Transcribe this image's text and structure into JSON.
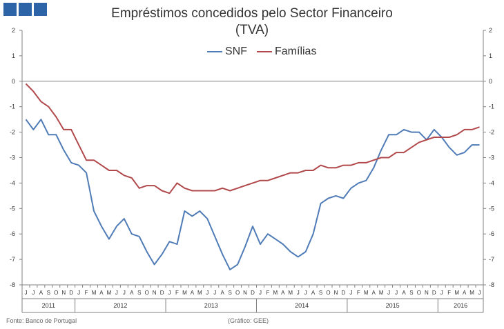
{
  "logo": {
    "name": "bank-logo"
  },
  "colors": {
    "snf": "#4f7bb6",
    "familias": "#b1484b",
    "axis": "#808080"
  },
  "chart_data": {
    "type": "line",
    "title": "Empréstimos concedidos pelo Sector Financeiro",
    "subtitle": "(TVA)",
    "legend": "top-center",
    "ylim": [
      -8,
      2
    ],
    "yticks": [
      "2",
      "1",
      "0",
      "-1",
      "-2",
      "-3",
      "-4",
      "-5",
      "-6",
      "-7",
      "-8"
    ],
    "month_labels": [
      "J",
      "J",
      "A",
      "S",
      "O",
      "N",
      "D",
      "J",
      "F",
      "M",
      "A",
      "M",
      "J",
      "J",
      "A",
      "S",
      "O",
      "N",
      "D",
      "J",
      "F",
      "M",
      "A",
      "M",
      "J",
      "J",
      "A",
      "S",
      "O",
      "N",
      "D",
      "J",
      "F",
      "M",
      "A",
      "M",
      "J",
      "J",
      "A",
      "S",
      "O",
      "N",
      "D",
      "J",
      "F",
      "M",
      "A",
      "M",
      "J",
      "J",
      "A",
      "S",
      "O",
      "N",
      "D",
      "J",
      "F",
      "M",
      "A",
      "M",
      "J"
    ],
    "years": [
      {
        "label": "2011",
        "start": 0,
        "end": 7
      },
      {
        "label": "2012",
        "start": 7,
        "end": 19
      },
      {
        "label": "2013",
        "start": 19,
        "end": 31
      },
      {
        "label": "2014",
        "start": 31,
        "end": 43
      },
      {
        "label": "2015",
        "start": 43,
        "end": 55
      },
      {
        "label": "2016",
        "start": 55,
        "end": 61
      }
    ],
    "series": [
      {
        "name": "SNF",
        "values": [
          -1.5,
          -1.9,
          -1.5,
          -2.1,
          -2.1,
          -2.7,
          -3.2,
          -3.3,
          -3.6,
          -5.1,
          -5.7,
          -6.2,
          -5.7,
          -5.4,
          -6.0,
          -6.1,
          -6.7,
          -7.2,
          -6.8,
          -6.3,
          -6.4,
          -5.1,
          -5.3,
          -5.1,
          -5.4,
          -6.1,
          -6.8,
          -7.4,
          -7.2,
          -6.5,
          -5.7,
          -6.4,
          -6.0,
          -6.2,
          -6.4,
          -6.7,
          -6.9,
          -6.7,
          -6.0,
          -4.8,
          -4.6,
          -4.5,
          -4.6,
          -4.2,
          -4.0,
          -3.9,
          -3.4,
          -2.7,
          -2.1,
          -2.1,
          -1.9,
          -2.0,
          -2.0,
          -2.3,
          -1.9,
          -2.2,
          -2.6,
          -2.9,
          -2.8,
          -2.5,
          -2.5
        ]
      },
      {
        "name": "Famílias",
        "values": [
          -0.1,
          -0.4,
          -0.8,
          -1.0,
          -1.4,
          -1.9,
          -1.9,
          -2.5,
          -3.1,
          -3.1,
          -3.3,
          -3.5,
          -3.5,
          -3.7,
          -3.8,
          -4.2,
          -4.1,
          -4.1,
          -4.3,
          -4.4,
          -4.0,
          -4.2,
          -4.3,
          -4.3,
          -4.3,
          -4.3,
          -4.2,
          -4.3,
          -4.2,
          -4.1,
          -4.0,
          -3.9,
          -3.9,
          -3.8,
          -3.7,
          -3.6,
          -3.6,
          -3.5,
          -3.5,
          -3.3,
          -3.4,
          -3.4,
          -3.3,
          -3.3,
          -3.2,
          -3.2,
          -3.1,
          -3.0,
          -3.0,
          -2.8,
          -2.8,
          -2.6,
          -2.4,
          -2.3,
          -2.2,
          -2.2,
          -2.2,
          -2.1,
          -1.9,
          -1.9,
          -1.8
        ]
      }
    ]
  },
  "footer": {
    "source": "Fonte: Banco de Portugal",
    "credit": "(Gráfico: GEE)"
  }
}
